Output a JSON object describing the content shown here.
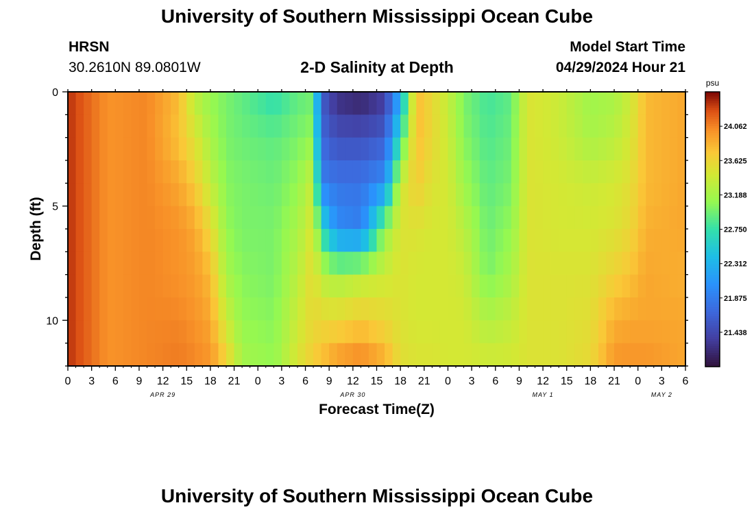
{
  "page_title": "University of Southern Mississippi Ocean Cube",
  "footer_title": "University of Southern Mississippi Ocean Cube",
  "station": {
    "name": "HRSN",
    "coords": "30.2610N  89.0801W"
  },
  "plot_title": "2-D Salinity at Depth",
  "model_start": {
    "label": "Model Start Time",
    "value": "04/29/2024 Hour 21"
  },
  "chart_data": {
    "type": "heatmap",
    "title": "2-D Salinity at Depth",
    "xlabel": "Forecast Time(Z)",
    "ylabel": "Depth (ft)",
    "x_hours": [
      0,
      3,
      6,
      9,
      12,
      15,
      18,
      21,
      24,
      27,
      30,
      33,
      36,
      39,
      42,
      45,
      48,
      51,
      54,
      57,
      60,
      63,
      66,
      69,
      72,
      75,
      78
    ],
    "x_tick_labels": [
      "0",
      "3",
      "6",
      "9",
      "12",
      "15",
      "18",
      "21",
      "0",
      "3",
      "6",
      "9",
      "12",
      "15",
      "18",
      "21",
      "0",
      "3",
      "6",
      "9",
      "12",
      "15",
      "18",
      "21",
      "0",
      "3",
      "6"
    ],
    "date_labels": [
      {
        "label": "APR 29",
        "hour": 12
      },
      {
        "label": "APR 30",
        "hour": 36
      },
      {
        "label": "MAY 1",
        "hour": 60
      },
      {
        "label": "MAY 2",
        "hour": 75
      }
    ],
    "y_ticks": [
      0,
      5,
      10
    ],
    "ylim": [
      0,
      12
    ],
    "xlim": [
      0,
      78
    ],
    "colorbar": {
      "unit": "psu",
      "min": 21.0,
      "max": 24.5,
      "ticks": [
        "24.062",
        "23.625",
        "23.188",
        "22.750",
        "22.312",
        "21.875",
        "21.438"
      ],
      "tick_values": [
        24.062,
        23.625,
        23.188,
        22.75,
        22.312,
        21.875,
        21.438
      ]
    },
    "sample_depths": [
      0,
      2,
      4,
      6,
      8,
      10,
      12
    ],
    "profiles": [
      {
        "hour": 0,
        "values": [
          24.35,
          24.35,
          24.35,
          24.35,
          24.35,
          24.35,
          24.35
        ]
      },
      {
        "hour": 5,
        "values": [
          24.0,
          24.0,
          24.0,
          24.0,
          24.0,
          24.0,
          24.0
        ]
      },
      {
        "hour": 10,
        "values": [
          24.05,
          24.05,
          24.05,
          24.05,
          24.05,
          24.05,
          24.05
        ]
      },
      {
        "hour": 14,
        "values": [
          23.8,
          23.75,
          23.9,
          24.0,
          24.0,
          24.05,
          24.1
        ]
      },
      {
        "hour": 16,
        "values": [
          23.3,
          23.5,
          23.7,
          23.9,
          23.95,
          24.0,
          24.05
        ]
      },
      {
        "hour": 18,
        "values": [
          23.1,
          23.2,
          23.35,
          23.6,
          23.8,
          23.9,
          24.0
        ]
      },
      {
        "hour": 20,
        "values": [
          23.0,
          23.0,
          23.05,
          23.1,
          23.2,
          23.4,
          23.7
        ]
      },
      {
        "hour": 22,
        "values": [
          22.9,
          22.95,
          23.0,
          23.0,
          23.05,
          23.1,
          23.2
        ]
      },
      {
        "hour": 26,
        "values": [
          22.7,
          22.9,
          22.95,
          23.0,
          23.0,
          23.05,
          23.1
        ]
      },
      {
        "hour": 29,
        "values": [
          22.9,
          23.0,
          23.1,
          23.2,
          23.3,
          23.4,
          23.5
        ]
      },
      {
        "hour": 31,
        "values": [
          22.95,
          23.1,
          23.4,
          23.5,
          23.6,
          23.6,
          23.7
        ]
      },
      {
        "hour": 32,
        "values": [
          21.6,
          21.7,
          21.9,
          22.7,
          23.3,
          23.6,
          23.8
        ]
      },
      {
        "hour": 34,
        "values": [
          21.2,
          21.5,
          21.8,
          22.0,
          23.2,
          23.6,
          24.0
        ]
      },
      {
        "hour": 37,
        "values": [
          21.1,
          21.5,
          21.8,
          21.9,
          23.3,
          23.7,
          24.1
        ]
      },
      {
        "hour": 40,
        "values": [
          21.3,
          21.6,
          22.0,
          23.1,
          23.4,
          23.6,
          23.9
        ]
      },
      {
        "hour": 42,
        "values": [
          22.2,
          22.7,
          23.4,
          23.5,
          23.5,
          23.5,
          23.55
        ]
      },
      {
        "hour": 44,
        "values": [
          23.8,
          23.8,
          23.7,
          23.5,
          23.45,
          23.45,
          23.5
        ]
      },
      {
        "hour": 46,
        "values": [
          23.6,
          23.6,
          23.5,
          23.45,
          23.45,
          23.45,
          23.5
        ]
      },
      {
        "hour": 48,
        "values": [
          23.35,
          23.4,
          23.45,
          23.45,
          23.45,
          23.45,
          23.45
        ]
      },
      {
        "hour": 50,
        "values": [
          23.0,
          23.05,
          23.15,
          23.3,
          23.4,
          23.45,
          23.45
        ]
      },
      {
        "hour": 53,
        "values": [
          22.8,
          22.85,
          22.9,
          22.95,
          23.0,
          23.25,
          23.45
        ]
      },
      {
        "hour": 56,
        "values": [
          22.9,
          22.95,
          23.0,
          23.1,
          23.2,
          23.35,
          23.45
        ]
      },
      {
        "hour": 58,
        "values": [
          23.5,
          23.5,
          23.5,
          23.5,
          23.5,
          23.5,
          23.5
        ]
      },
      {
        "hour": 62,
        "values": [
          23.4,
          23.4,
          23.45,
          23.45,
          23.5,
          23.5,
          23.5
        ]
      },
      {
        "hour": 66,
        "values": [
          23.15,
          23.2,
          23.4,
          23.45,
          23.5,
          23.55,
          23.6
        ]
      },
      {
        "hour": 69,
        "values": [
          23.2,
          23.3,
          23.45,
          23.5,
          23.65,
          23.85,
          24.0
        ]
      },
      {
        "hour": 71,
        "values": [
          23.4,
          23.45,
          23.55,
          23.6,
          23.75,
          23.9,
          24.0
        ]
      },
      {
        "hour": 73,
        "values": [
          23.8,
          23.8,
          23.8,
          23.85,
          23.9,
          23.9,
          24.0
        ]
      },
      {
        "hour": 78,
        "values": [
          23.9,
          23.9,
          23.9,
          23.9,
          23.85,
          23.9,
          23.9
        ]
      }
    ]
  }
}
